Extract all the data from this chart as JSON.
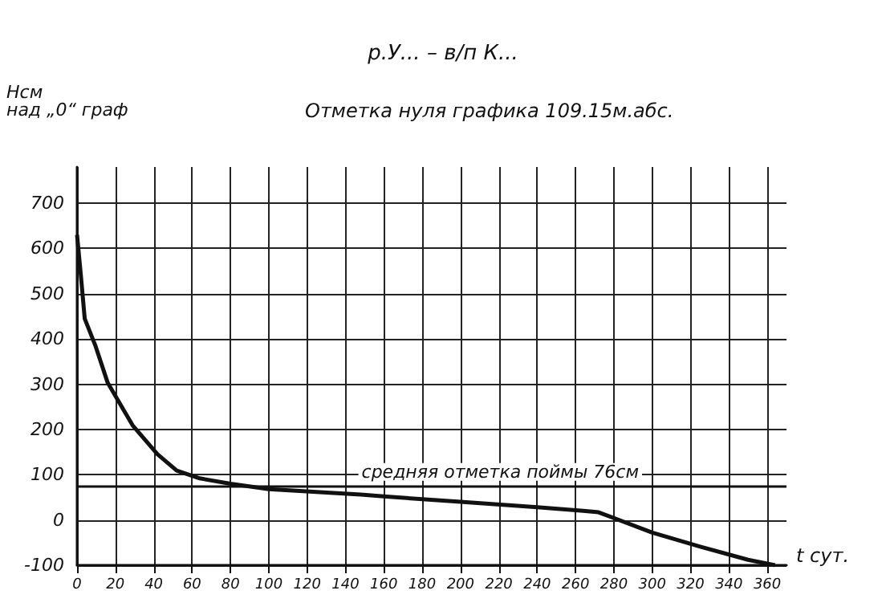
{
  "chart_data": {
    "type": "line",
    "title": "р.У... – в/п К...",
    "subtitle": "Отметка нуля графика 109.15м.абс.",
    "xlabel": "t сут.",
    "ylabel": "Нсм\nнад „0“ граф",
    "x": [
      0,
      2,
      4,
      9.5,
      16,
      29,
      42,
      52,
      64,
      80,
      100,
      148,
      160,
      200,
      240,
      264,
      272,
      300,
      325,
      350,
      364
    ],
    "series": [
      {
        "color": "#111111",
        "values": [
          630,
          540,
          445,
          386,
          303,
          209,
          145,
          109,
          92,
          80,
          68,
          56,
          52,
          40,
          28,
          20,
          17,
          -28,
          -59,
          -88,
          -100
        ]
      }
    ],
    "xlim": [
      0,
      370
    ],
    "xticks": [
      0,
      20,
      40,
      60,
      80,
      100,
      120,
      140,
      160,
      180,
      200,
      220,
      240,
      260,
      280,
      300,
      320,
      340,
      360
    ],
    "ylim": [
      -100,
      780
    ],
    "yticks": [
      -100,
      0,
      100,
      200,
      300,
      400,
      500,
      600,
      700
    ],
    "grid": true,
    "marker": "none",
    "line_style": "solid",
    "ref_lines": [
      {
        "axis": "y",
        "value": 76,
        "label": "средняя отметка поймы 76см",
        "color": "#111111"
      }
    ]
  }
}
